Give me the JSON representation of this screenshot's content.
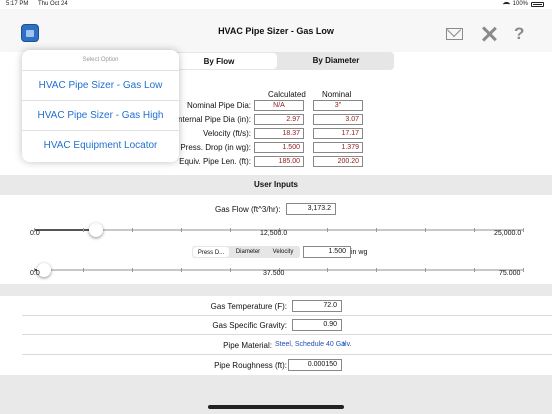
{
  "status": {
    "time": "5:17 PM",
    "date": "Thu Oct 24",
    "battery": "100%"
  },
  "nav": {
    "title": "HVAC Pipe Sizer - Gas Low",
    "icons": [
      "app-icon",
      "mail-icon",
      "tools-icon",
      "help-icon"
    ],
    "help_glyph": "?"
  },
  "tabs": {
    "by_flow": "By Flow",
    "by_diameter": "By Diameter",
    "selected": "By Flow"
  },
  "menu": {
    "header": "Select Option",
    "items": [
      "HVAC Pipe Sizer - Gas Low",
      "HVAC Pipe Sizer - Gas High",
      "HVAC Equipment Locator"
    ]
  },
  "results": {
    "col_calculated": "Calculated",
    "col_nominal": "Nominal",
    "rows": [
      {
        "label": "Nominal Pipe Dia:",
        "calculated": "N/A",
        "nominal": "3\""
      },
      {
        "label": "Internal Pipe Dia (in):",
        "calculated": "2.97",
        "nominal": "3.07"
      },
      {
        "label": "Velocity (ft/s):",
        "calculated": "18.37",
        "nominal": "17.17"
      },
      {
        "label": "Press. Drop (in wg):",
        "calculated": "1.500",
        "nominal": "1.379"
      },
      {
        "label": "Equiv. Pipe Len. (ft):",
        "calculated": "185.00",
        "nominal": "200.20"
      }
    ]
  },
  "inputs": {
    "section_title": "User Inputs",
    "gas_flow_label": "Gas Flow (ft^3/hr):",
    "gas_flow_value": "3,173.2",
    "flow_slider": {
      "min": "0.0",
      "mid": "12,500.0",
      "max": "25,000.0",
      "value_fraction": 0.127
    },
    "mode_tabs": [
      "Press D...",
      "Diameter",
      "Velocity"
    ],
    "mode_selected": "Press D...",
    "mode_value": "1.500",
    "mode_unit": "in wg",
    "mode_slider": {
      "min": "0.0",
      "mid": "37.500",
      "max": "75.000",
      "value_fraction": 0.02
    }
  },
  "properties": {
    "gas_temp_label": "Gas Temperature (F):",
    "gas_temp_value": "72.0",
    "gas_sg_label": "Gas Specific Gravity:",
    "gas_sg_value": "0.90",
    "pipe_material_label": "Pipe Material:",
    "pipe_material_value": "Steel, Schedule 40 Galv.",
    "pipe_roughness_label": "Pipe Roughness (ft):",
    "pipe_roughness_value": "0.000150"
  }
}
